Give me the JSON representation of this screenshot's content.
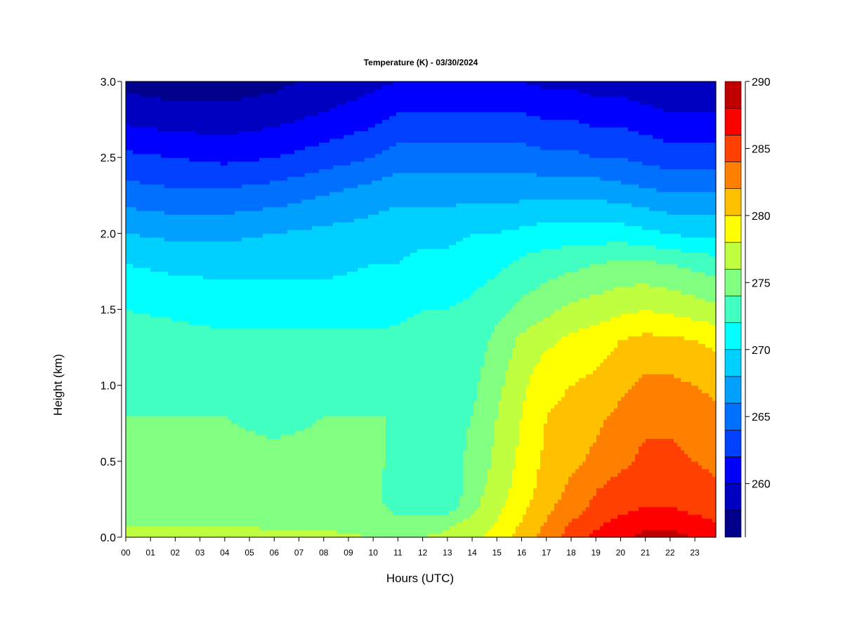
{
  "chart_data": {
    "type": "heatmap",
    "title": "Temperature (K) - 03/30/2024",
    "xlabel": "Hours (UTC)",
    "ylabel": "Height (km)",
    "x_ticks": [
      "00",
      "01",
      "02",
      "03",
      "04",
      "05",
      "06",
      "07",
      "08",
      "09",
      "10",
      "11",
      "12",
      "13",
      "14",
      "15",
      "16",
      "17",
      "18",
      "19",
      "20",
      "21",
      "22",
      "23"
    ],
    "xlim": [
      0,
      23.85
    ],
    "y_ticks": [
      0.0,
      0.5,
      1.0,
      1.5,
      2.0,
      2.5,
      3.0
    ],
    "y_tick_labels": [
      "0.0",
      "0.5",
      "1.0",
      "1.5",
      "2.0",
      "2.5",
      "3.0"
    ],
    "ylim": [
      0,
      3.0
    ],
    "colorbar": {
      "range": [
        256,
        290
      ],
      "ticks": [
        260,
        265,
        270,
        275,
        280,
        285,
        290
      ],
      "tick_labels": [
        "260",
        "265",
        "270",
        "275",
        "280",
        "285",
        "290"
      ],
      "levels": [
        256,
        258,
        260,
        262,
        264,
        266,
        268,
        270,
        272,
        274,
        276,
        278,
        280,
        282,
        284,
        286,
        288,
        290
      ],
      "colors": [
        "#00008b",
        "#0000c0",
        "#0000ff",
        "#0040ff",
        "#0070ff",
        "#00a0ff",
        "#00d0ff",
        "#00ffff",
        "#40ffc0",
        "#80ff80",
        "#c0ff40",
        "#ffff00",
        "#ffc000",
        "#ff8000",
        "#ff4000",
        "#ff0000",
        "#c00000",
        "#800000"
      ]
    },
    "grid": false,
    "height_km": [
      0.0,
      0.05,
      0.1,
      0.2,
      0.3,
      0.5,
      0.8,
      1.0,
      1.3,
      1.5,
      1.8,
      2.0,
      2.3,
      2.5,
      2.8,
      3.0
    ],
    "hours": [
      0,
      2,
      4,
      6,
      8,
      10,
      11,
      12,
      13,
      14,
      15,
      16,
      17,
      18,
      19,
      20,
      21,
      22,
      23,
      23.85
    ],
    "temperature_K": [
      [
        277.5,
        277.5,
        277,
        276.5,
        276.5,
        276,
        275.5,
        276,
        276.5,
        277.5,
        279,
        281,
        283,
        285,
        286.5,
        287.5,
        288.5,
        288.5,
        288,
        287.5
      ],
      [
        276.5,
        276.5,
        276.5,
        276,
        276,
        275.5,
        275,
        275.5,
        276,
        277,
        278.5,
        280.5,
        282.5,
        284.5,
        286,
        287,
        288,
        288,
        287.5,
        287
      ],
      [
        275.5,
        275.5,
        275.5,
        275.5,
        275.5,
        275,
        274.5,
        275,
        275.5,
        276.5,
        278,
        280,
        282,
        284,
        285.5,
        286.5,
        287,
        287,
        286.5,
        286
      ],
      [
        275,
        275,
        275,
        275,
        275,
        274.5,
        273.5,
        273,
        273,
        275.5,
        277.5,
        279.5,
        281.5,
        283,
        284.5,
        285.5,
        286,
        286,
        285.5,
        285
      ],
      [
        274.5,
        274.5,
        274.5,
        274.5,
        274.5,
        274.5,
        273,
        272.5,
        272.5,
        275,
        277,
        279,
        281,
        282.5,
        284,
        285,
        285.5,
        285.5,
        285,
        284.5
      ],
      [
        274.5,
        274.5,
        274.5,
        274.5,
        274.5,
        274.5,
        273.5,
        273,
        273,
        274.5,
        276.5,
        278.5,
        280.5,
        281.5,
        282.5,
        283.5,
        284.5,
        284.5,
        284,
        283.5
      ],
      [
        274,
        274,
        274,
        273.5,
        274,
        274,
        274,
        273.5,
        273.5,
        274,
        276,
        278,
        280,
        280.5,
        281.5,
        282.5,
        283.5,
        283.5,
        283,
        282.5
      ],
      [
        273.5,
        273.5,
        273.5,
        273.5,
        273.5,
        273.5,
        273.5,
        273.5,
        273.5,
        273.5,
        275.5,
        277.5,
        279.5,
        280,
        280.5,
        281.5,
        282.5,
        282.5,
        282,
        281.5
      ],
      [
        273,
        273,
        272.5,
        272.5,
        272.5,
        272.5,
        272.5,
        273,
        273,
        273,
        274.5,
        276.5,
        277.5,
        278.5,
        279,
        280,
        280.5,
        280.5,
        280,
        279.5
      ],
      [
        272,
        271.5,
        271,
        271,
        271,
        271,
        271.5,
        272,
        272,
        272.5,
        273.5,
        274.5,
        275.5,
        276.5,
        277,
        277.5,
        278,
        277.5,
        277,
        276.5
      ],
      [
        270,
        269.5,
        269.5,
        269.5,
        269.5,
        270,
        270,
        270.5,
        270.5,
        271,
        271.5,
        272.5,
        273,
        273.5,
        274,
        274.5,
        274.5,
        274,
        273.5,
        273
      ],
      [
        268,
        267.5,
        267.5,
        268,
        268.5,
        269,
        269.5,
        269.5,
        269.5,
        270,
        270,
        270.5,
        271,
        271,
        271,
        271,
        270.5,
        270,
        269.5,
        269.5
      ],
      [
        264.5,
        264,
        264,
        264.5,
        265.5,
        266.5,
        267,
        267,
        267,
        267,
        267,
        267,
        267,
        267,
        267,
        266.5,
        266,
        265.5,
        265.5,
        265.5
      ],
      [
        262.5,
        262,
        261.5,
        262,
        263,
        264,
        265,
        265,
        265,
        265,
        265,
        265,
        264.5,
        264.5,
        264,
        264,
        263.5,
        263,
        263,
        263
      ],
      [
        259,
        258.5,
        258.5,
        259,
        260,
        261,
        262,
        262,
        262,
        262,
        262,
        262,
        261.5,
        261.5,
        261,
        261,
        260.5,
        260,
        260,
        260
      ],
      [
        257.5,
        257,
        257,
        257.5,
        258.5,
        259.5,
        260,
        260,
        260,
        260,
        260,
        260,
        259.5,
        259.5,
        259,
        259,
        258.5,
        258,
        258,
        258
      ]
    ]
  }
}
